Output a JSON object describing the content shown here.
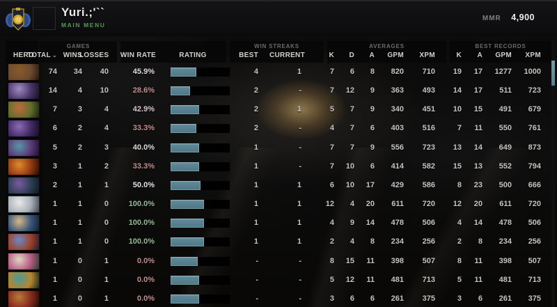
{
  "header": {
    "player_name": "Yuri.;'``",
    "main_menu_label": "MAIN MENU",
    "mmr_label": "MMR",
    "mmr_value": "4,900"
  },
  "colors": {
    "accent_green": "#4f9e4f",
    "win_positive": "#93bd93",
    "win_negative": "#c98b8b",
    "win_neutral": "#e2dcdc",
    "bar_fill": "#5d8696",
    "bar_track": "#010101"
  },
  "table": {
    "groups": {
      "games": "GAMES",
      "win_streaks": "WIN STREAKS",
      "averages": "AVERAGES",
      "best_records": "BEST RECORDS"
    },
    "columns": {
      "hero": "HERO",
      "total": "TOTAL",
      "total_sort": "⌄",
      "wins": "WINS",
      "losses": "LOSSES",
      "win_rate": "WIN RATE",
      "rating": "RATING",
      "streak_best": "BEST",
      "streak_current": "CURRENT",
      "avg_k": "K",
      "avg_d": "D",
      "avg_a": "A",
      "avg_gpm": "GPM",
      "avg_xpm": "XPM",
      "rec_k": "K",
      "rec_a": "A",
      "rec_gpm": "GPM",
      "rec_xpm": "XPM"
    },
    "rows": [
      {
        "hero_portrait": [
          "#8a5a28",
          "#6b4a30",
          "#23180c"
        ],
        "total": "74",
        "wins": "34",
        "losses": "40",
        "win_rate": "45.9%",
        "win_rate_color": "#e2d7d7",
        "rating_fill_pct": 44,
        "streak_best": "4",
        "streak_current": "1",
        "avg_k": "7",
        "avg_d": "6",
        "avg_a": "8",
        "avg_gpm": "820",
        "avg_xpm": "710",
        "rec_k": "19",
        "rec_a": "17",
        "rec_gpm": "1277",
        "rec_xpm": "1000"
      },
      {
        "hero_portrait": [
          "#a08cc0",
          "#4a3468",
          "#181028"
        ],
        "total": "14",
        "wins": "4",
        "losses": "10",
        "win_rate": "28.6%",
        "win_rate_color": "#c98b8b",
        "rating_fill_pct": 33,
        "streak_best": "2",
        "streak_current": "-",
        "avg_k": "7",
        "avg_d": "12",
        "avg_a": "9",
        "avg_gpm": "363",
        "avg_xpm": "493",
        "rec_k": "14",
        "rec_a": "17",
        "rec_gpm": "511",
        "rec_xpm": "723"
      },
      {
        "hero_portrait": [
          "#c06a3a",
          "#5f6e2e",
          "#20200e"
        ],
        "total": "7",
        "wins": "3",
        "losses": "4",
        "win_rate": "42.9%",
        "win_rate_color": "#dcc6c6",
        "rating_fill_pct": 48,
        "streak_best": "2",
        "streak_current": "1",
        "avg_k": "5",
        "avg_d": "7",
        "avg_a": "9",
        "avg_gpm": "340",
        "avg_xpm": "451",
        "rec_k": "10",
        "rec_a": "15",
        "rec_gpm": "491",
        "rec_xpm": "679"
      },
      {
        "hero_portrait": [
          "#8a6ab5",
          "#422a66",
          "#140d22"
        ],
        "total": "6",
        "wins": "2",
        "losses": "4",
        "win_rate": "33.3%",
        "win_rate_color": "#c98b8b",
        "rating_fill_pct": 44,
        "streak_best": "2",
        "streak_current": "-",
        "avg_k": "4",
        "avg_d": "7",
        "avg_a": "6",
        "avg_gpm": "403",
        "avg_xpm": "516",
        "rec_k": "7",
        "rec_a": "11",
        "rec_gpm": "550",
        "rec_xpm": "761"
      },
      {
        "hero_portrait": [
          "#5a95a8",
          "#5a3a78",
          "#1c1030"
        ],
        "total": "5",
        "wins": "2",
        "losses": "3",
        "win_rate": "40.0%",
        "win_rate_color": "#e0d6d6",
        "rating_fill_pct": 48,
        "streak_best": "1",
        "streak_current": "-",
        "avg_k": "7",
        "avg_d": "7",
        "avg_a": "9",
        "avg_gpm": "556",
        "avg_xpm": "723",
        "rec_k": "13",
        "rec_a": "14",
        "rec_gpm": "649",
        "rec_xpm": "873"
      },
      {
        "hero_portrait": [
          "#e08a30",
          "#923a12",
          "#260c04"
        ],
        "total": "3",
        "wins": "1",
        "losses": "2",
        "win_rate": "33.3%",
        "win_rate_color": "#c98b8b",
        "rating_fill_pct": 48,
        "streak_best": "1",
        "streak_current": "-",
        "avg_k": "7",
        "avg_d": "10",
        "avg_a": "6",
        "avg_gpm": "414",
        "avg_xpm": "582",
        "rec_k": "15",
        "rec_a": "13",
        "rec_gpm": "552",
        "rec_xpm": "794"
      },
      {
        "hero_portrait": [
          "#7a5aa0",
          "#2c3e52",
          "#0e1820"
        ],
        "total": "2",
        "wins": "1",
        "losses": "1",
        "win_rate": "50.0%",
        "win_rate_color": "#e4e2e2",
        "rating_fill_pct": 51,
        "streak_best": "1",
        "streak_current": "1",
        "avg_k": "6",
        "avg_d": "10",
        "avg_a": "17",
        "avg_gpm": "429",
        "avg_xpm": "586",
        "rec_k": "8",
        "rec_a": "23",
        "rec_gpm": "500",
        "rec_xpm": "666"
      },
      {
        "hero_portrait": [
          "#e8e8e8",
          "#a8b0ba",
          "#3c4450"
        ],
        "total": "1",
        "wins": "1",
        "losses": "0",
        "win_rate": "100.0%",
        "win_rate_color": "#93bd93",
        "rating_fill_pct": 56,
        "streak_best": "1",
        "streak_current": "1",
        "avg_k": "12",
        "avg_d": "4",
        "avg_a": "20",
        "avg_gpm": "611",
        "avg_xpm": "720",
        "rec_k": "12",
        "rec_a": "20",
        "rec_gpm": "611",
        "rec_xpm": "720"
      },
      {
        "hero_portrait": [
          "#d8b888",
          "#38567a",
          "#141e2a"
        ],
        "total": "1",
        "wins": "1",
        "losses": "0",
        "win_rate": "100.0%",
        "win_rate_color": "#93bd93",
        "rating_fill_pct": 56,
        "streak_best": "1",
        "streak_current": "1",
        "avg_k": "4",
        "avg_d": "9",
        "avg_a": "14",
        "avg_gpm": "478",
        "avg_xpm": "506",
        "rec_k": "4",
        "rec_a": "14",
        "rec_gpm": "478",
        "rec_xpm": "506"
      },
      {
        "hero_portrait": [
          "#6a8ac8",
          "#a04028",
          "#16203a"
        ],
        "total": "1",
        "wins": "1",
        "losses": "0",
        "win_rate": "100.0%",
        "win_rate_color": "#93bd93",
        "rating_fill_pct": 56,
        "streak_best": "1",
        "streak_current": "1",
        "avg_k": "2",
        "avg_d": "4",
        "avg_a": "8",
        "avg_gpm": "234",
        "avg_xpm": "256",
        "rec_k": "2",
        "rec_a": "8",
        "rec_gpm": "234",
        "rec_xpm": "256"
      },
      {
        "hero_portrait": [
          "#ded8c2",
          "#b85a85",
          "#23402c"
        ],
        "total": "1",
        "wins": "0",
        "losses": "1",
        "win_rate": "0.0%",
        "win_rate_color": "#c98b8b",
        "rating_fill_pct": 46,
        "streak_best": "-",
        "streak_current": "-",
        "avg_k": "8",
        "avg_d": "15",
        "avg_a": "11",
        "avg_gpm": "398",
        "avg_xpm": "507",
        "rec_k": "8",
        "rec_a": "11",
        "rec_gpm": "398",
        "rec_xpm": "507"
      },
      {
        "hero_portrait": [
          "#4a9a9a",
          "#b8862c",
          "#0f2a2c"
        ],
        "total": "1",
        "wins": "0",
        "losses": "1",
        "win_rate": "0.0%",
        "win_rate_color": "#c98b8b",
        "rating_fill_pct": 48,
        "streak_best": "-",
        "streak_current": "-",
        "avg_k": "5",
        "avg_d": "12",
        "avg_a": "11",
        "avg_gpm": "481",
        "avg_xpm": "713",
        "rec_k": "5",
        "rec_a": "11",
        "rec_gpm": "481",
        "rec_xpm": "713"
      },
      {
        "hero_portrait": [
          "#b87a3a",
          "#8a2a1e",
          "#1c0d06"
        ],
        "total": "1",
        "wins": "0",
        "losses": "1",
        "win_rate": "0.0%",
        "win_rate_color": "#c98b8b",
        "rating_fill_pct": 48,
        "streak_best": "-",
        "streak_current": "-",
        "avg_k": "3",
        "avg_d": "6",
        "avg_a": "6",
        "avg_gpm": "261",
        "avg_xpm": "375",
        "rec_k": "3",
        "rec_a": "6",
        "rec_gpm": "261",
        "rec_xpm": "375"
      }
    ]
  }
}
